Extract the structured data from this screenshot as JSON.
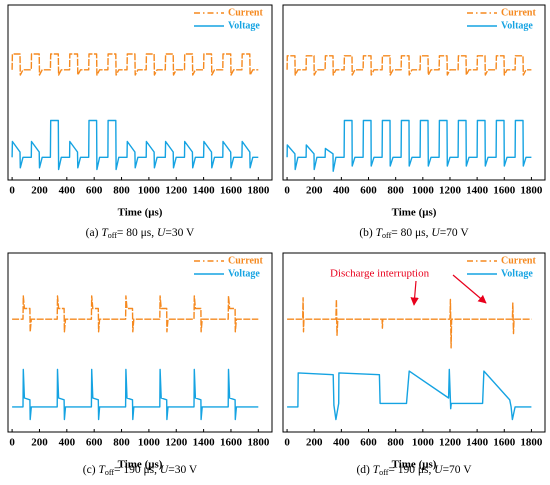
{
  "chart_data": [
    {
      "type": "line",
      "caption": {
        "prefix": "(a) ",
        "var1": "T",
        "sub": "off",
        "mid": "= 80 μs, ",
        "var2": "U",
        "rest": "=30 V"
      },
      "xlabel": "Time (μs)",
      "xlim": [
        -30,
        1900
      ],
      "xticks": [
        0,
        200,
        400,
        600,
        800,
        1000,
        1200,
        1400,
        1600,
        1800
      ],
      "ylim": [
        0,
        10
      ],
      "legend": "upper right",
      "series": [
        {
          "name": "Current",
          "color": "#f5891f",
          "x": [
            0,
            2,
            58,
            60,
            80,
            140,
            142,
            198,
            200,
            220,
            280,
            282,
            338,
            340,
            360,
            420,
            422,
            478,
            480,
            500,
            560,
            562,
            618,
            620,
            640,
            700,
            702,
            758,
            760,
            780,
            840,
            842,
            898,
            900,
            920,
            980,
            982,
            1038,
            1040,
            1060,
            1120,
            1122,
            1178,
            1180,
            1200,
            1260,
            1262,
            1318,
            1320,
            1340,
            1400,
            1402,
            1458,
            1460,
            1480,
            1540,
            1542,
            1598,
            1600,
            1620,
            1680,
            1682,
            1738,
            1740,
            1760,
            1800
          ],
          "values": [
            6.3,
            7.2,
            7.2,
            6.0,
            6.3,
            6.3,
            7.2,
            7.2,
            6.0,
            6.3,
            6.3,
            7.2,
            7.2,
            6.0,
            6.3,
            6.3,
            7.2,
            7.2,
            6.0,
            6.3,
            6.3,
            7.2,
            7.2,
            6.0,
            6.3,
            6.3,
            7.2,
            7.2,
            6.0,
            6.3,
            6.3,
            7.2,
            7.2,
            6.0,
            6.3,
            6.3,
            7.2,
            7.2,
            6.0,
            6.3,
            6.3,
            7.2,
            7.2,
            6.0,
            6.3,
            6.3,
            7.2,
            7.2,
            6.0,
            6.3,
            6.3,
            7.2,
            7.2,
            6.0,
            6.3,
            6.3,
            7.2,
            7.2,
            6.0,
            6.3,
            6.3,
            7.2,
            7.2,
            6.0,
            6.3,
            6.3
          ]
        },
        {
          "name": "Voltage",
          "color": "#15a3e2",
          "x": [
            0,
            2,
            58,
            60,
            80,
            140,
            142,
            198,
            200,
            220,
            280,
            282,
            338,
            340,
            360,
            420,
            422,
            478,
            480,
            500,
            560,
            562,
            618,
            620,
            640,
            700,
            702,
            758,
            760,
            780,
            840,
            842,
            898,
            900,
            920,
            980,
            982,
            1038,
            1040,
            1060,
            1120,
            1122,
            1178,
            1180,
            1200,
            1260,
            1262,
            1318,
            1320,
            1340,
            1400,
            1402,
            1458,
            1460,
            1480,
            1540,
            1542,
            1598,
            1600,
            1620,
            1680,
            1682,
            1738,
            1740,
            1760,
            1800
          ],
          "values": [
            1.3,
            2.2,
            1.6,
            0.7,
            1.3,
            1.3,
            2.2,
            1.6,
            0.7,
            1.3,
            1.3,
            3.4,
            3.4,
            0.6,
            1.3,
            1.3,
            2.2,
            1.6,
            0.7,
            1.3,
            1.3,
            3.4,
            3.4,
            0.6,
            1.3,
            1.3,
            3.4,
            3.4,
            0.6,
            1.3,
            1.3,
            2.2,
            1.6,
            0.7,
            1.3,
            1.3,
            2.2,
            1.6,
            0.7,
            1.3,
            1.3,
            2.2,
            1.6,
            0.7,
            1.3,
            1.3,
            2.2,
            1.6,
            0.7,
            1.3,
            1.3,
            2.2,
            1.6,
            0.7,
            1.3,
            1.3,
            2.2,
            1.6,
            0.7,
            1.3,
            1.3,
            2.2,
            1.6,
            0.7,
            1.3,
            1.3
          ]
        }
      ]
    },
    {
      "type": "line",
      "caption": {
        "prefix": "(b) ",
        "var1": "T",
        "sub": "off",
        "mid": "= 80 μs, ",
        "var2": "U",
        "rest": "=70 V"
      },
      "xlabel": "Time (μs)",
      "xlim": [
        -30,
        1900
      ],
      "xticks": [
        0,
        200,
        400,
        600,
        800,
        1000,
        1200,
        1400,
        1600,
        1800
      ],
      "ylim": [
        0,
        10
      ],
      "legend": "upper right",
      "series": [
        {
          "name": "Current",
          "color": "#f5891f",
          "x": [
            0,
            2,
            58,
            60,
            80,
            140,
            142,
            198,
            200,
            220,
            280,
            282,
            338,
            340,
            360,
            420,
            422,
            478,
            480,
            500,
            560,
            562,
            618,
            620,
            640,
            700,
            702,
            758,
            760,
            780,
            840,
            842,
            898,
            900,
            920,
            980,
            982,
            1038,
            1040,
            1060,
            1120,
            1122,
            1178,
            1180,
            1200,
            1260,
            1262,
            1318,
            1320,
            1340,
            1400,
            1402,
            1458,
            1460,
            1480,
            1540,
            1542,
            1598,
            1600,
            1620,
            1680,
            1682,
            1738,
            1740,
            1760,
            1800
          ],
          "values": [
            6.3,
            7.1,
            7.1,
            6.0,
            6.3,
            6.3,
            7.1,
            7.1,
            6.0,
            6.3,
            6.3,
            7.1,
            7.1,
            6.0,
            6.3,
            6.3,
            7.1,
            7.1,
            6.0,
            6.3,
            6.3,
            7.1,
            7.1,
            6.0,
            6.3,
            6.3,
            7.1,
            7.1,
            6.0,
            6.3,
            6.3,
            7.1,
            7.1,
            6.0,
            6.3,
            6.3,
            7.1,
            7.1,
            6.0,
            6.3,
            6.3,
            7.1,
            7.1,
            6.0,
            6.3,
            6.3,
            7.1,
            7.1,
            6.0,
            6.3,
            6.3,
            7.1,
            7.1,
            6.0,
            6.3,
            6.3,
            7.1,
            7.1,
            6.0,
            6.3,
            6.3,
            7.1,
            7.1,
            6.0,
            6.3,
            6.3
          ]
        },
        {
          "name": "Voltage",
          "color": "#15a3e2",
          "x": [
            0,
            2,
            58,
            60,
            80,
            140,
            142,
            198,
            200,
            220,
            280,
            282,
            338,
            340,
            360,
            420,
            422,
            478,
            480,
            500,
            560,
            562,
            618,
            620,
            640,
            700,
            702,
            758,
            760,
            780,
            840,
            842,
            898,
            900,
            920,
            980,
            982,
            1038,
            1040,
            1060,
            1120,
            1122,
            1178,
            1180,
            1200,
            1260,
            1262,
            1318,
            1320,
            1340,
            1400,
            1402,
            1458,
            1460,
            1480,
            1540,
            1542,
            1598,
            1600,
            1620,
            1680,
            1682,
            1738,
            1740,
            1760,
            1800
          ],
          "values": [
            1.3,
            2.0,
            1.5,
            0.6,
            1.3,
            1.3,
            2.0,
            1.5,
            0.6,
            1.3,
            1.3,
            1.8,
            1.5,
            0.5,
            1.3,
            1.3,
            3.4,
            3.4,
            0.8,
            1.3,
            1.3,
            3.4,
            3.4,
            0.8,
            1.3,
            1.3,
            3.4,
            3.4,
            0.8,
            1.3,
            1.3,
            3.4,
            3.4,
            0.8,
            1.3,
            1.3,
            3.4,
            3.4,
            0.8,
            1.3,
            1.3,
            3.4,
            3.4,
            0.8,
            1.3,
            1.3,
            3.4,
            3.4,
            0.8,
            1.3,
            1.3,
            3.4,
            3.4,
            0.8,
            1.3,
            1.3,
            3.4,
            3.4,
            0.8,
            1.3,
            1.3,
            3.4,
            3.4,
            0.8,
            1.3,
            1.3
          ]
        }
      ]
    },
    {
      "type": "line",
      "caption": {
        "prefix": "(c) ",
        "var1": "T",
        "sub": "off",
        "mid": "= 190 μs, ",
        "var2": "U",
        "rest": "=30 V"
      },
      "xlabel": "Time (μs)",
      "xlim": [
        -30,
        1900
      ],
      "xticks": [
        0,
        200,
        400,
        600,
        800,
        1000,
        1200,
        1400,
        1600,
        1800
      ],
      "ylim": [
        0,
        10
      ],
      "legend": "upper right",
      "series": [
        {
          "name": "Current",
          "color": "#f5891f",
          "x": [
            0,
            80,
            82,
            90,
            130,
            132,
            140,
            330,
            332,
            340,
            380,
            382,
            390,
            580,
            582,
            590,
            630,
            632,
            640,
            830,
            832,
            840,
            880,
            882,
            890,
            1080,
            1082,
            1090,
            1130,
            1132,
            1140,
            1330,
            1332,
            1340,
            1380,
            1382,
            1390,
            1580,
            1582,
            1590,
            1630,
            1632,
            1640,
            1800
          ],
          "values": [
            6.3,
            6.3,
            7.6,
            6.9,
            6.9,
            5.6,
            6.3,
            6.3,
            7.6,
            6.9,
            6.9,
            5.6,
            6.3,
            6.3,
            7.6,
            6.9,
            6.9,
            5.6,
            6.3,
            6.3,
            7.6,
            6.9,
            6.9,
            5.6,
            6.3,
            6.3,
            7.6,
            6.9,
            6.9,
            5.6,
            6.3,
            6.3,
            7.6,
            6.9,
            6.9,
            5.6,
            6.3,
            6.3,
            7.6,
            6.9,
            6.9,
            5.6,
            6.3,
            6.3
          ]
        },
        {
          "name": "Voltage",
          "color": "#15a3e2",
          "x": [
            0,
            80,
            82,
            90,
            130,
            132,
            140,
            330,
            332,
            340,
            380,
            382,
            390,
            580,
            582,
            590,
            630,
            632,
            640,
            830,
            832,
            840,
            880,
            882,
            890,
            1080,
            1082,
            1090,
            1130,
            1132,
            1140,
            1330,
            1332,
            1340,
            1380,
            1382,
            1390,
            1580,
            1582,
            1590,
            1630,
            1632,
            1640,
            1800
          ],
          "values": [
            1.4,
            1.4,
            3.5,
            1.9,
            1.8,
            0.7,
            1.4,
            1.4,
            3.5,
            1.9,
            1.8,
            0.7,
            1.4,
            1.4,
            3.5,
            1.9,
            1.8,
            0.7,
            1.4,
            1.4,
            3.5,
            1.9,
            1.8,
            0.7,
            1.4,
            1.4,
            3.5,
            1.9,
            1.8,
            0.7,
            1.4,
            1.4,
            3.5,
            1.9,
            1.8,
            0.7,
            1.4,
            1.4,
            3.5,
            1.9,
            1.8,
            0.7,
            1.4,
            1.4
          ]
        }
      ]
    },
    {
      "type": "line",
      "caption": {
        "prefix": "(d) ",
        "var1": "T",
        "sub": "off",
        "mid": "= 190 μs, ",
        "var2": "U",
        "rest": "=70 V"
      },
      "xlabel": "Time (μs)",
      "xlim": [
        -30,
        1900
      ],
      "xticks": [
        0,
        200,
        400,
        600,
        800,
        1000,
        1200,
        1400,
        1600,
        1800
      ],
      "ylim": [
        0,
        10
      ],
      "legend": "upper right",
      "annotation": "Discharge interruption",
      "series": [
        {
          "name": "Current",
          "color": "#f5891f",
          "x": [
            0,
            115,
            118,
            121,
            124,
            360,
            363,
            368,
            374,
            700,
            702,
            705,
            1200,
            1203,
            1208,
            1212,
            1660,
            1663,
            1668,
            1672,
            1800
          ],
          "values": [
            6.3,
            6.3,
            7.5,
            5.6,
            6.3,
            6.3,
            7.4,
            5.4,
            6.3,
            6.3,
            5.8,
            6.3,
            6.3,
            7.4,
            4.7,
            6.3,
            6.3,
            7.2,
            5.5,
            6.3,
            6.3
          ]
        },
        {
          "name": "Voltage",
          "color": "#15a3e2",
          "x": [
            0,
            80,
            82,
            340,
            345,
            360,
            380,
            382,
            680,
            685,
            880,
            900,
            1190,
            1195,
            1205,
            1210,
            1440,
            1450,
            1640,
            1650,
            1660,
            1680,
            1800
          ],
          "values": [
            1.4,
            1.4,
            3.3,
            3.2,
            1.5,
            0.7,
            1.6,
            3.3,
            3.2,
            1.6,
            1.6,
            3.4,
            1.9,
            3.5,
            1.3,
            1.6,
            1.6,
            3.4,
            1.8,
            1.4,
            0.7,
            1.4,
            1.4
          ]
        }
      ]
    }
  ]
}
